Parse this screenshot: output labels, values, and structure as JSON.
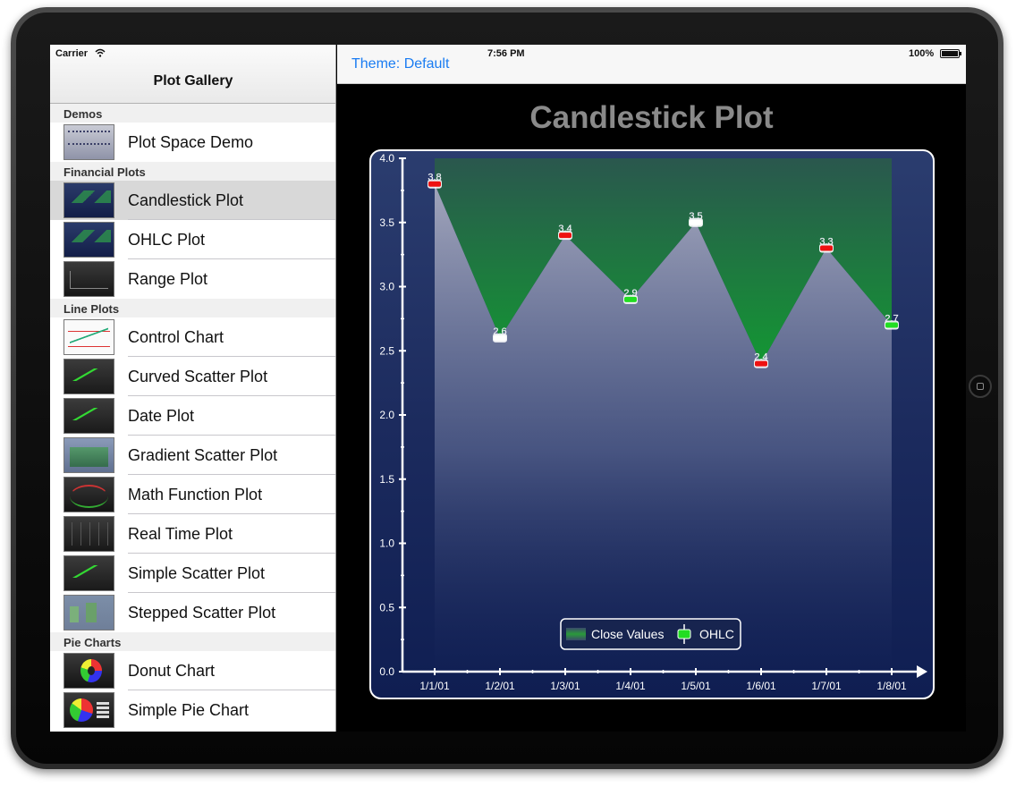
{
  "status": {
    "carrier": "Carrier",
    "time": "7:56 PM",
    "battery": "100%"
  },
  "master": {
    "title": "Plot Gallery",
    "sections": [
      {
        "title": "Demos",
        "items": [
          {
            "label": "Plot Space Demo",
            "thumb": "th-space"
          }
        ]
      },
      {
        "title": "Financial Plots",
        "items": [
          {
            "label": "Candlestick Plot",
            "thumb": "th-candle",
            "selected": true
          },
          {
            "label": "OHLC Plot",
            "thumb": "th-candle"
          },
          {
            "label": "Range Plot",
            "thumb": "th-dark"
          }
        ]
      },
      {
        "title": "Line Plots",
        "items": [
          {
            "label": "Control Chart",
            "thumb": "th-white"
          },
          {
            "label": "Curved Scatter Plot",
            "thumb": "th-green"
          },
          {
            "label": "Date Plot",
            "thumb": "th-green"
          },
          {
            "label": "Gradient Scatter Plot",
            "thumb": "th-grad"
          },
          {
            "label": "Math Function Plot",
            "thumb": "th-math"
          },
          {
            "label": "Real Time Plot",
            "thumb": "th-real"
          },
          {
            "label": "Simple Scatter Plot",
            "thumb": "th-green"
          },
          {
            "label": "Stepped Scatter Plot",
            "thumb": "th-step"
          }
        ]
      },
      {
        "title": "Pie Charts",
        "items": [
          {
            "label": "Donut Chart",
            "thumb": "th-donut"
          },
          {
            "label": "Simple Pie Chart",
            "thumb": "th-pie"
          }
        ]
      }
    ]
  },
  "detail": {
    "theme_button": "Theme: Default",
    "title": "Candlestick Plot"
  },
  "colors": {
    "accent": "#1a7cf2",
    "up": "#22dd22",
    "down": "#ee1111",
    "fill": "#1f8a3a",
    "plot_bg": "#1b2a5c"
  },
  "chart_data": {
    "type": "candlestick",
    "title": "Candlestick Plot",
    "categories": [
      "1/1/01",
      "1/2/01",
      "1/3/01",
      "1/4/01",
      "1/5/01",
      "1/6/01",
      "1/7/01",
      "1/8/01"
    ],
    "y_ticks": [
      "0.0",
      "0.5",
      "1.0",
      "1.5",
      "2.0",
      "2.5",
      "3.0",
      "3.5",
      "4.0"
    ],
    "ylim": [
      0,
      4
    ],
    "close_values": [
      3.8,
      2.6,
      3.4,
      2.9,
      3.5,
      2.4,
      3.3,
      2.7
    ],
    "close_labels": [
      "3.8",
      "2.6",
      "3.4",
      "2.9",
      "3.5",
      "2.4",
      "3.3",
      "2.7"
    ],
    "candles": [
      {
        "direction": "down"
      },
      {
        "direction": "none"
      },
      {
        "direction": "down"
      },
      {
        "direction": "up"
      },
      {
        "direction": "none"
      },
      {
        "direction": "down"
      },
      {
        "direction": "down"
      },
      {
        "direction": "up"
      }
    ],
    "legend": [
      "Close Values",
      "OHLC"
    ],
    "legend_position": "bottom-center",
    "grid": false
  }
}
